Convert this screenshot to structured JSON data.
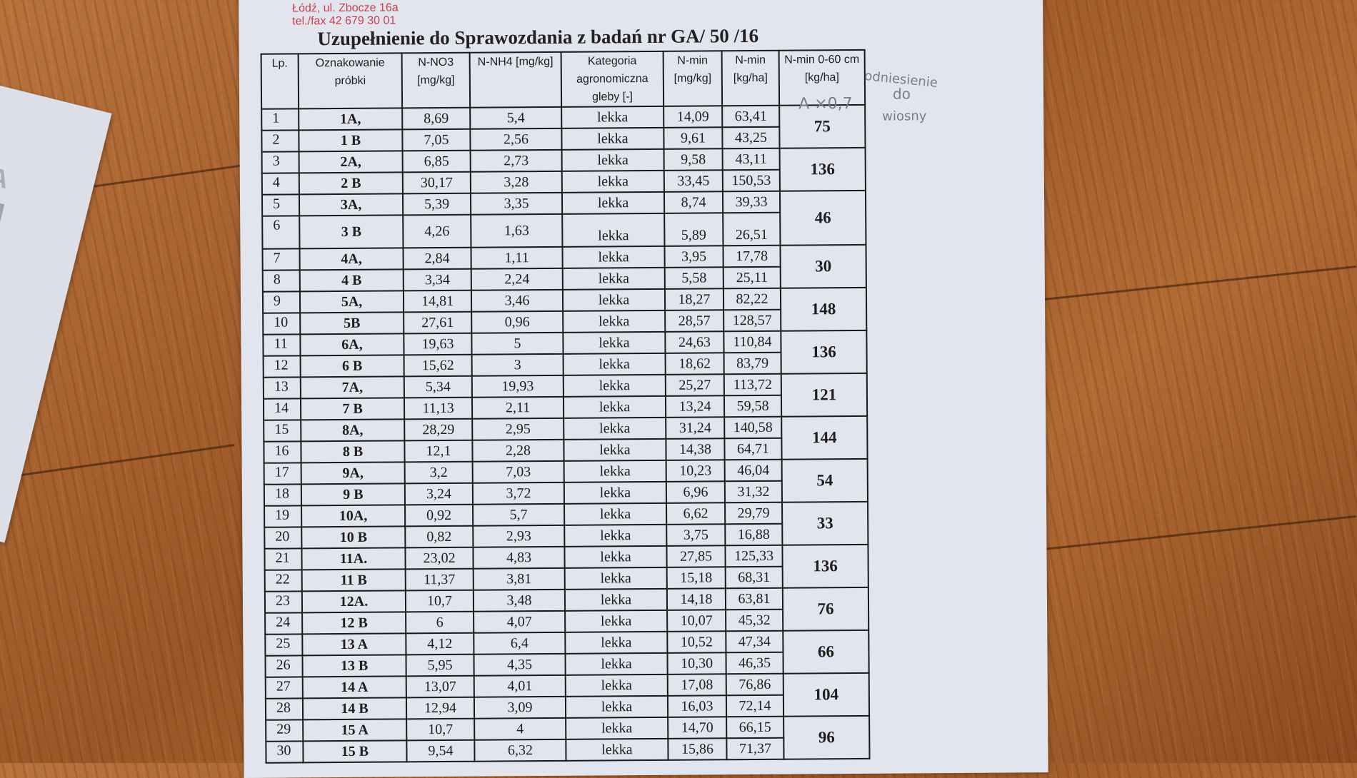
{
  "letterhead": {
    "address": "Łódź, ul. Zbocze 16a",
    "phone": "tel./fax 42 679 30 01"
  },
  "title": "Uzupełnienie do Sprawozdania z badań nr GA/ 50 /16",
  "headers": [
    "Lp.",
    "Oznakowanie próbki",
    "N-NO3 [mg/kg]",
    "N-NH4 [mg/kg]",
    "Kategoria agronomiczna gleby [-]",
    "N-min [mg/kg]",
    "N-min [kg/ha]",
    "N-min 0-60 cm [kg/ha]"
  ],
  "rows": [
    [
      "1",
      "1A,",
      "8,69",
      "5,4",
      "lekka",
      "14,09",
      "63,41"
    ],
    [
      "2",
      "1 B",
      "7,05",
      "2,56",
      "lekka",
      "9,61",
      "43,25"
    ],
    [
      "3",
      "2A,",
      "6,85",
      "2,73",
      "lekka",
      "9,58",
      "43,11"
    ],
    [
      "4",
      "2 B",
      "30,17",
      "3,28",
      "lekka",
      "33,45",
      "150,53"
    ],
    [
      "5",
      "3A,",
      "5,39",
      "3,35",
      "lekka",
      "8,74",
      "39,33"
    ],
    [
      "6",
      "3 B",
      "4,26",
      "1,63",
      "lekka",
      "5,89",
      "26,51"
    ],
    [
      "7",
      "4A,",
      "2,84",
      "1,11",
      "lekka",
      "3,95",
      "17,78"
    ],
    [
      "8",
      "4 B",
      "3,34",
      "2,24",
      "lekka",
      "5,58",
      "25,11"
    ],
    [
      "9",
      "5A,",
      "14,81",
      "3,46",
      "lekka",
      "18,27",
      "82,22"
    ],
    [
      "10",
      "5B",
      "27,61",
      "0,96",
      "lekka",
      "28,57",
      "128,57"
    ],
    [
      "11",
      "6A,",
      "19,63",
      "5",
      "lekka",
      "24,63",
      "110,84"
    ],
    [
      "12",
      "6 B",
      "15,62",
      "3",
      "lekka",
      "18,62",
      "83,79"
    ],
    [
      "13",
      "7A,",
      "5,34",
      "19,93",
      "lekka",
      "25,27",
      "113,72"
    ],
    [
      "14",
      "7 B",
      "11,13",
      "2,11",
      "lekka",
      "13,24",
      "59,58"
    ],
    [
      "15",
      "8A,",
      "28,29",
      "2,95",
      "lekka",
      "31,24",
      "140,58"
    ],
    [
      "16",
      "8 B",
      "12,1",
      "2,28",
      "lekka",
      "14,38",
      "64,71"
    ],
    [
      "17",
      "9A,",
      "3,2",
      "7,03",
      "lekka",
      "10,23",
      "46,04"
    ],
    [
      "18",
      "9 B",
      "3,24",
      "3,72",
      "lekka",
      "6,96",
      "31,32"
    ],
    [
      "19",
      "10A,",
      "0,92",
      "5,7",
      "lekka",
      "6,62",
      "29,79"
    ],
    [
      "20",
      "10 B",
      "0,82",
      "2,93",
      "lekka",
      "3,75",
      "16,88"
    ],
    [
      "21",
      "11A.",
      "23,02",
      "4,83",
      "lekka",
      "27,85",
      "125,33"
    ],
    [
      "22",
      "11 B",
      "11,37",
      "3,81",
      "lekka",
      "15,18",
      "68,31"
    ],
    [
      "23",
      "12A.",
      "10,7",
      "3,48",
      "lekka",
      "14,18",
      "63,81"
    ],
    [
      "24",
      "12 B",
      "6",
      "4,07",
      "lekka",
      "10,07",
      "45,32"
    ],
    [
      "25",
      "13 A",
      "4,12",
      "6,4",
      "lekka",
      "10,52",
      "47,34"
    ],
    [
      "26",
      "13 B",
      "5,95",
      "4,35",
      "lekka",
      "10,30",
      "46,35"
    ],
    [
      "27",
      "14 A",
      "13,07",
      "4,01",
      "lekka",
      "17,08",
      "76,86"
    ],
    [
      "28",
      "14 B",
      "12,94",
      "3,09",
      "lekka",
      "16,03",
      "72,14"
    ],
    [
      "29",
      "15 A",
      "10,7",
      "4",
      "lekka",
      "14,70",
      "66,15"
    ],
    [
      "30",
      "15 B",
      "9,54",
      "6,32",
      "lekka",
      "15,86",
      "71,37"
    ]
  ],
  "sums": [
    "75",
    "136",
    "46",
    "30",
    "148",
    "136",
    "121",
    "144",
    "54",
    "33",
    "136",
    "76",
    "66",
    "104",
    "96"
  ],
  "handwritten_note": {
    "line1": "odniesienie",
    "line2": "do",
    "line3": "wiosny",
    "formula": "A ×0,7"
  },
  "side_paper_logo": "CA",
  "colors": {
    "ink": "#1a1a1a",
    "letterhead": "#d0525e",
    "pencil": "#7a7d88",
    "paper": "#e3e5ee"
  }
}
